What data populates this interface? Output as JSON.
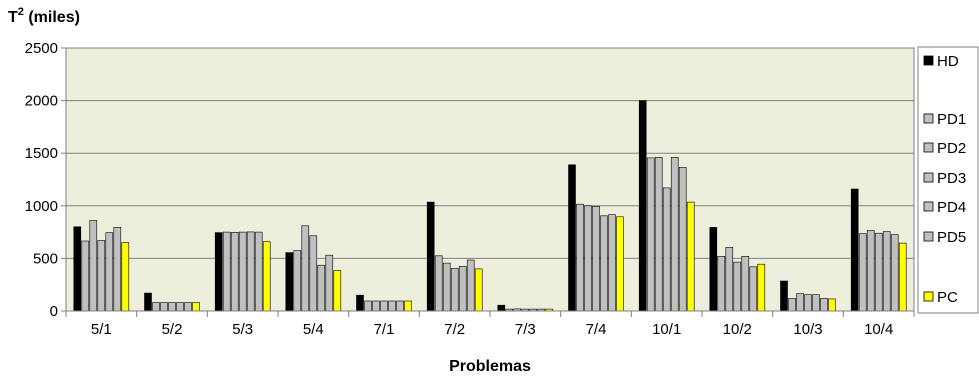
{
  "chart_data": {
    "type": "bar",
    "ylabel_main": "T",
    "ylabel_sup": "2",
    "ylabel_rest": " (miles)",
    "xlabel": "Problemas",
    "ylim": [
      0,
      2500
    ],
    "yticks": [
      "0",
      "500",
      "1000",
      "1500",
      "2000",
      "2500"
    ],
    "ytick_values": [
      0,
      500,
      1000,
      1500,
      2000,
      2500
    ],
    "grid": true,
    "legend_position": "right",
    "plot_background": "#eeeedd",
    "categories": [
      "5/1",
      "5/2",
      "5/3",
      "5/4",
      "7/1",
      "7/2",
      "7/3",
      "7/4",
      "10/1",
      "10/2",
      "10/3",
      "10/4"
    ],
    "series": [
      {
        "name": "HD",
        "color": "#000000",
        "values": [
          800,
          170,
          745,
          555,
          150,
          1035,
          55,
          1390,
          2000,
          795,
          285,
          1160
        ]
      },
      {
        "name": "PD1",
        "color": "#c0c0c0",
        "values": [
          665,
          80,
          750,
          575,
          95,
          525,
          18,
          1015,
          1455,
          520,
          120,
          735
        ]
      },
      {
        "name": "PD2",
        "color": "#c0c0c0",
        "values": [
          860,
          80,
          748,
          810,
          95,
          455,
          20,
          1000,
          1460,
          605,
          165,
          765
        ]
      },
      {
        "name": "PD3",
        "color": "#c0c0c0",
        "values": [
          670,
          80,
          750,
          715,
          95,
          405,
          18,
          995,
          1170,
          465,
          155,
          740
        ]
      },
      {
        "name": "PD4",
        "color": "#c0c0c0",
        "values": [
          745,
          80,
          752,
          435,
          95,
          425,
          18,
          905,
          1460,
          520,
          155,
          755
        ]
      },
      {
        "name": "PD5",
        "color": "#c0c0c0",
        "values": [
          795,
          80,
          750,
          530,
          95,
          485,
          18,
          915,
          1365,
          420,
          120,
          725
        ]
      },
      {
        "name": "PC",
        "color": "#ffff00",
        "values": [
          650,
          80,
          660,
          385,
          95,
          400,
          18,
          895,
          1035,
          445,
          115,
          645
        ]
      }
    ]
  }
}
